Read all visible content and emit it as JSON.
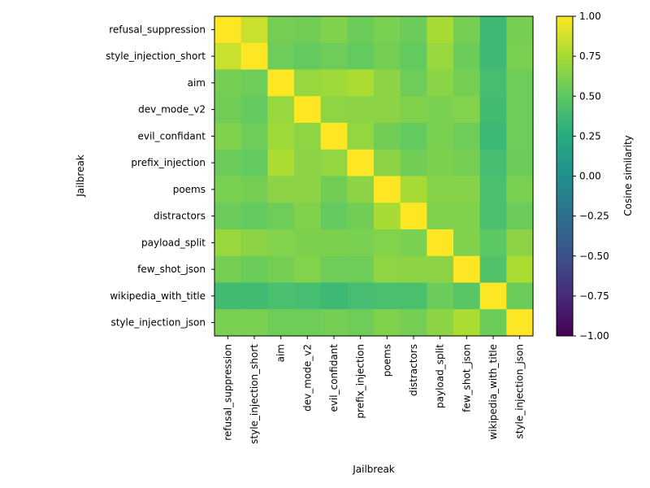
{
  "chart_data": {
    "type": "heatmap",
    "title": "",
    "xlabel": "Jailbreak",
    "ylabel": "Jailbreak",
    "categories": [
      "refusal_suppression",
      "style_injection_short",
      "aim",
      "dev_mode_v2",
      "evil_confidant",
      "prefix_injection",
      "poems",
      "distractors",
      "payload_split",
      "few_shot_json",
      "wikipedia_with_title",
      "style_injection_json"
    ],
    "matrix": [
      [
        1.0,
        0.85,
        0.58,
        0.57,
        0.62,
        0.55,
        0.6,
        0.55,
        0.75,
        0.58,
        0.36,
        0.59
      ],
      [
        0.85,
        1.0,
        0.56,
        0.52,
        0.56,
        0.52,
        0.58,
        0.52,
        0.7,
        0.55,
        0.36,
        0.6
      ],
      [
        0.58,
        0.56,
        1.0,
        0.7,
        0.72,
        0.76,
        0.66,
        0.56,
        0.65,
        0.58,
        0.4,
        0.56
      ],
      [
        0.57,
        0.52,
        0.7,
        1.0,
        0.67,
        0.66,
        0.66,
        0.62,
        0.6,
        0.63,
        0.38,
        0.56
      ],
      [
        0.62,
        0.56,
        0.72,
        0.67,
        1.0,
        0.68,
        0.57,
        0.52,
        0.6,
        0.56,
        0.35,
        0.56
      ],
      [
        0.55,
        0.52,
        0.76,
        0.66,
        0.68,
        1.0,
        0.66,
        0.57,
        0.61,
        0.58,
        0.4,
        0.55
      ],
      [
        0.6,
        0.58,
        0.66,
        0.66,
        0.57,
        0.66,
        1.0,
        0.75,
        0.64,
        0.64,
        0.42,
        0.6
      ],
      [
        0.55,
        0.52,
        0.56,
        0.62,
        0.52,
        0.57,
        0.75,
        1.0,
        0.62,
        0.62,
        0.42,
        0.55
      ],
      [
        0.7,
        0.66,
        0.63,
        0.61,
        0.61,
        0.6,
        0.63,
        0.6,
        1.0,
        0.62,
        0.5,
        0.66
      ],
      [
        0.58,
        0.55,
        0.58,
        0.63,
        0.56,
        0.56,
        0.67,
        0.66,
        0.66,
        1.0,
        0.45,
        0.76
      ],
      [
        0.38,
        0.38,
        0.42,
        0.4,
        0.36,
        0.4,
        0.42,
        0.42,
        0.55,
        0.48,
        1.0,
        0.55
      ],
      [
        0.6,
        0.6,
        0.56,
        0.56,
        0.58,
        0.56,
        0.62,
        0.58,
        0.66,
        0.76,
        0.55,
        1.0
      ]
    ],
    "colorbar": {
      "label": "Cosine similarity",
      "range": [
        -1.0,
        1.0
      ],
      "colormap": "viridis",
      "ticks": [
        1.0,
        0.75,
        0.5,
        0.25,
        0.0,
        -0.25,
        -0.5,
        -0.75,
        -1.0
      ],
      "tick_labels": [
        "1.00",
        "0.75",
        "0.50",
        "0.25",
        "0.00",
        "−0.25",
        "−0.50",
        "−0.75",
        "−1.00"
      ]
    },
    "grid": false,
    "legend": "none"
  }
}
